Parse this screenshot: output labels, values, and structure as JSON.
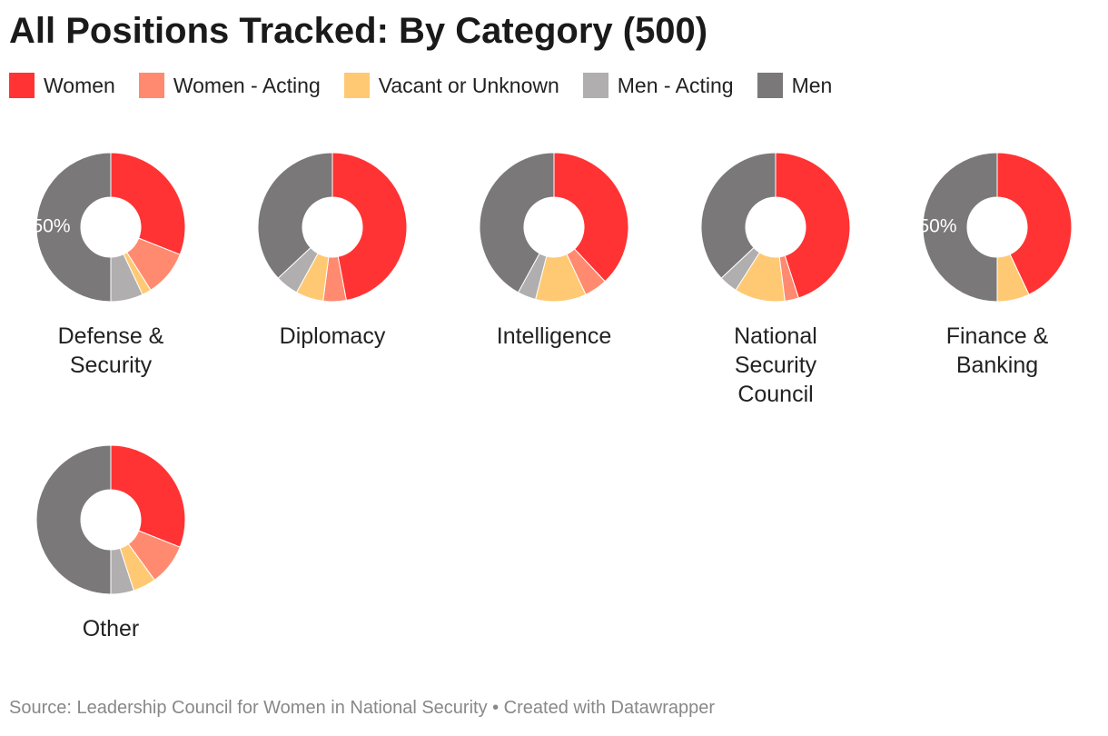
{
  "title": "All Positions Tracked: By Category (500)",
  "legend": [
    {
      "name": "Women",
      "color": "#ff3333"
    },
    {
      "name": "Women - Acting",
      "color": "#ff8a70"
    },
    {
      "name": "Vacant or Unknown",
      "color": "#ffc973"
    },
    {
      "name": "Men - Acting",
      "color": "#b0aeae"
    },
    {
      "name": "Men",
      "color": "#7a7878"
    }
  ],
  "chart_data": [
    {
      "type": "donut",
      "title": "Defense & Security",
      "values": [
        31,
        10,
        2,
        7,
        50
      ],
      "value_labels": [
        null,
        null,
        null,
        null,
        "50%"
      ]
    },
    {
      "type": "donut",
      "title": "Diplomacy",
      "values": [
        47,
        5,
        6,
        5,
        37
      ],
      "value_labels": [
        null,
        null,
        null,
        null,
        null
      ]
    },
    {
      "type": "donut",
      "title": "Intelligence",
      "values": [
        38,
        5,
        11,
        4,
        42
      ],
      "value_labels": [
        null,
        null,
        null,
        null,
        null
      ]
    },
    {
      "type": "donut",
      "title": "National Security Council",
      "values": [
        45,
        3,
        11,
        4,
        37
      ],
      "value_labels": [
        null,
        null,
        null,
        null,
        null
      ]
    },
    {
      "type": "donut",
      "title": "Finance & Banking",
      "values": [
        43,
        0,
        7,
        0,
        50
      ],
      "value_labels": [
        null,
        null,
        null,
        null,
        "50%"
      ]
    },
    {
      "type": "donut",
      "title": "Other",
      "values": [
        31,
        9,
        5,
        5,
        50
      ],
      "value_labels": [
        null,
        null,
        null,
        null,
        null
      ]
    }
  ],
  "source": "Source: Leadership Council for Women in National Security • Created with Datawrapper"
}
